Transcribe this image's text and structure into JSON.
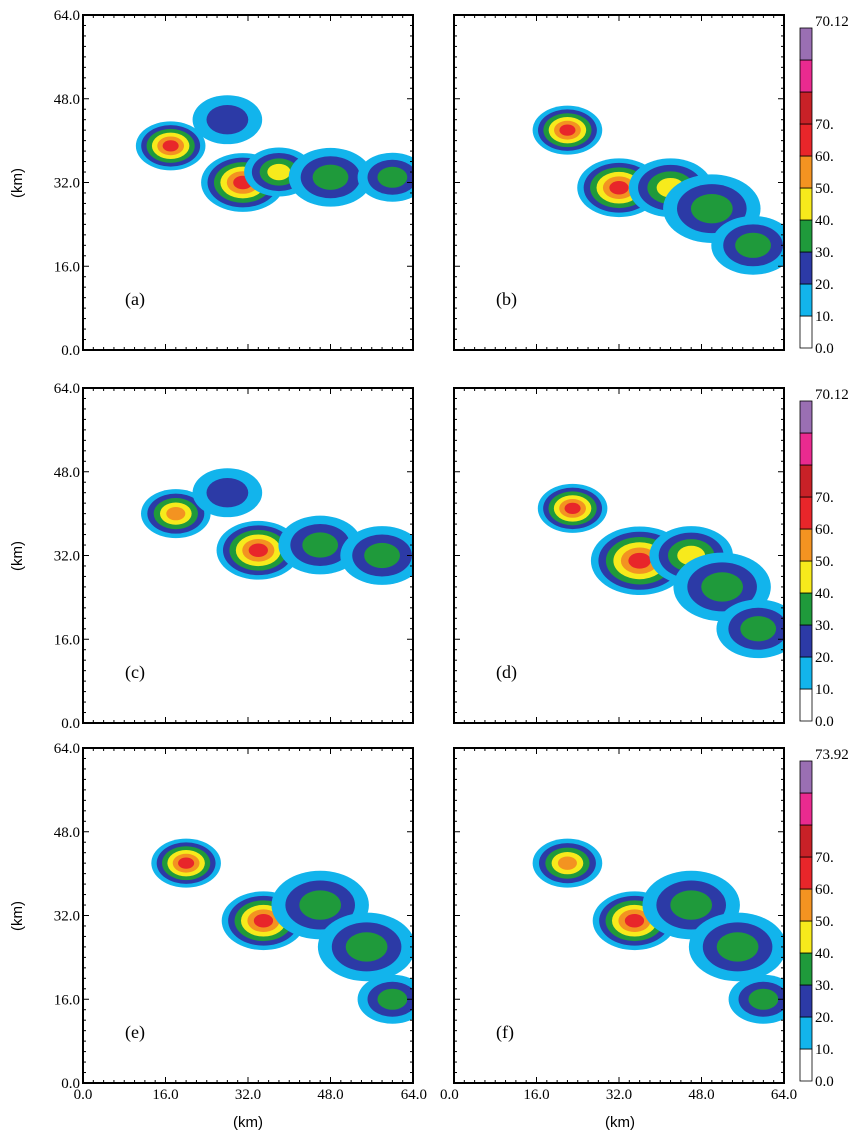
{
  "chart_data": {
    "type": "heatmap",
    "xlabel": "(km)",
    "ylabel": "(km)",
    "xlim": [
      0,
      64
    ],
    "ylim": [
      0,
      64
    ],
    "x_ticks": [
      "0.0",
      "16.0",
      "32.0",
      "48.0",
      "64.0"
    ],
    "y_ticks": [
      "0.0",
      "16.0",
      "32.0",
      "48.0",
      "64.0"
    ],
    "grid": false,
    "colorbar_levels": [
      "0.0",
      "10.",
      "20.",
      "30.",
      "40.",
      "50.",
      "60.",
      "70."
    ],
    "colorbar_colors": [
      "#ffffff",
      "#12b4ec",
      "#2c3aa6",
      "#1f9a3b",
      "#f7ea1c",
      "#f39321",
      "#e8262a",
      "#c82127",
      "#ea2a8f",
      "#9a6fb3"
    ],
    "colorbars": [
      {
        "max_label": "70.12"
      },
      {
        "max_label": "70.12"
      },
      {
        "max_label": "73.92"
      }
    ],
    "panels": [
      {
        "label": "(a)",
        "cells": [
          {
            "x": 17,
            "y": 39,
            "r": 5,
            "v": 55
          },
          {
            "x": 31,
            "y": 32,
            "r": 6,
            "v": 58
          },
          {
            "x": 38,
            "y": 34,
            "r": 5,
            "v": 40
          },
          {
            "x": 48,
            "y": 33,
            "r": 6,
            "v": 32
          },
          {
            "x": 60,
            "y": 33,
            "r": 5,
            "v": 28
          },
          {
            "x": 28,
            "y": 44,
            "r": 5,
            "v": 22
          }
        ]
      },
      {
        "label": "(b)",
        "cells": [
          {
            "x": 22,
            "y": 42,
            "r": 5,
            "v": 55
          },
          {
            "x": 32,
            "y": 31,
            "r": 6,
            "v": 58
          },
          {
            "x": 42,
            "y": 31,
            "r": 6,
            "v": 44
          },
          {
            "x": 50,
            "y": 27,
            "r": 7,
            "v": 32
          },
          {
            "x": 58,
            "y": 20,
            "r": 6,
            "v": 30
          }
        ]
      },
      {
        "label": "(c)",
        "cells": [
          {
            "x": 18,
            "y": 40,
            "r": 5,
            "v": 52
          },
          {
            "x": 34,
            "y": 33,
            "r": 6,
            "v": 62
          },
          {
            "x": 46,
            "y": 34,
            "r": 6,
            "v": 32
          },
          {
            "x": 58,
            "y": 32,
            "r": 6,
            "v": 30
          },
          {
            "x": 28,
            "y": 44,
            "r": 5,
            "v": 22
          }
        ]
      },
      {
        "label": "(d)",
        "cells": [
          {
            "x": 23,
            "y": 41,
            "r": 5,
            "v": 56
          },
          {
            "x": 36,
            "y": 31,
            "r": 7,
            "v": 62
          },
          {
            "x": 46,
            "y": 32,
            "r": 6,
            "v": 40
          },
          {
            "x": 52,
            "y": 26,
            "r": 7,
            "v": 32
          },
          {
            "x": 59,
            "y": 18,
            "r": 6,
            "v": 30
          }
        ]
      },
      {
        "label": "(e)",
        "cells": [
          {
            "x": 20,
            "y": 42,
            "r": 5,
            "v": 56
          },
          {
            "x": 35,
            "y": 31,
            "r": 6,
            "v": 60
          },
          {
            "x": 46,
            "y": 34,
            "r": 7,
            "v": 34
          },
          {
            "x": 55,
            "y": 26,
            "r": 7,
            "v": 31
          },
          {
            "x": 60,
            "y": 16,
            "r": 5,
            "v": 28
          }
        ]
      },
      {
        "label": "(f)",
        "cells": [
          {
            "x": 22,
            "y": 42,
            "r": 5,
            "v": 54
          },
          {
            "x": 35,
            "y": 31,
            "r": 6,
            "v": 56
          },
          {
            "x": 46,
            "y": 34,
            "r": 7,
            "v": 34
          },
          {
            "x": 55,
            "y": 26,
            "r": 7,
            "v": 31
          },
          {
            "x": 60,
            "y": 16,
            "r": 5,
            "v": 28
          }
        ]
      }
    ]
  }
}
